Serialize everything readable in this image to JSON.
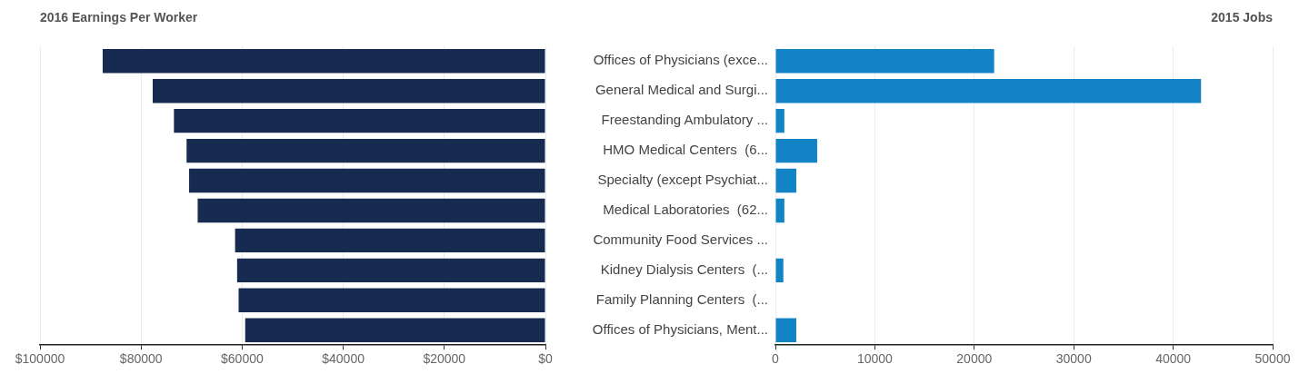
{
  "chart_data": [
    {
      "type": "bar",
      "orientation": "horizontal",
      "title": "2016 Earnings Per Worker",
      "categories": [
        null,
        null,
        null,
        null,
        null,
        null,
        null,
        null,
        null,
        null
      ],
      "values": [
        87600,
        77700,
        73500,
        71000,
        70500,
        68800,
        61400,
        61000,
        60700,
        59400
      ],
      "color": "#172a50",
      "xlim": [
        100000,
        0
      ],
      "xticks": [
        {
          "value": 100000,
          "label": "$100000"
        },
        {
          "value": 80000,
          "label": "$80000"
        },
        {
          "value": 60000,
          "label": "$60000"
        },
        {
          "value": 40000,
          "label": "$40000"
        },
        {
          "value": 20000,
          "label": "$20000"
        },
        {
          "value": 0,
          "label": "$0"
        }
      ],
      "grid": "x",
      "tick_labels": "x"
    },
    {
      "type": "bar",
      "orientation": "horizontal",
      "title": "2015 Jobs",
      "categories": [
        "Offices of Physicians (exce...",
        "General Medical and Surgi...",
        "Freestanding Ambulatory ...",
        "HMO Medical Centers  (6...",
        "Specialty (except Psychiat...",
        "Medical Laboratories  (62...",
        "Community Food Services ...",
        "Kidney Dialysis Centers  (...",
        "Family Planning Centers  (...",
        "Offices of Physicians, Ment..."
      ],
      "values": [
        22000,
        42800,
        900,
        4200,
        2100,
        900,
        0,
        800,
        0,
        2100
      ],
      "color": "#1284c5",
      "xlim": [
        0,
        50000
      ],
      "xticks": [
        0,
        10000,
        20000,
        30000,
        40000,
        50000
      ],
      "grid": "x"
    }
  ]
}
